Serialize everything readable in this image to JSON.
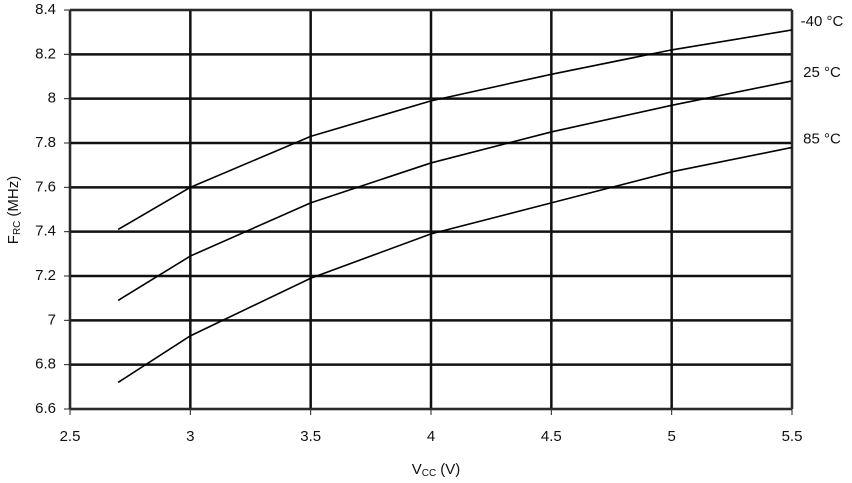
{
  "chart_data": {
    "type": "line",
    "x_label": {
      "main": "V",
      "sub": "CC",
      "unit": "(V)"
    },
    "y_label": {
      "main": "F",
      "sub": "RC",
      "unit": "(MHz)"
    },
    "x": [
      2.7,
      3,
      3.5,
      4,
      4.5,
      5,
      5.5
    ],
    "series": [
      {
        "name": "-40 °C",
        "color": "#000000",
        "values": [
          7.41,
          7.6,
          7.83,
          7.99,
          8.11,
          8.22,
          8.31
        ]
      },
      {
        "name": "25 °C",
        "color": "#000000",
        "values": [
          7.09,
          7.29,
          7.53,
          7.71,
          7.85,
          7.97,
          8.08
        ]
      },
      {
        "name": "85 °C",
        "color": "#000000",
        "values": [
          6.72,
          6.93,
          7.19,
          7.39,
          7.53,
          7.67,
          7.78
        ]
      }
    ],
    "xlim": [
      2.5,
      5.5
    ],
    "xticks": [
      2.5,
      3,
      3.5,
      4,
      4.5,
      5,
      5.5
    ],
    "ylim": [
      6.6,
      8.4
    ],
    "yticks": [
      6.6,
      6.8,
      7,
      7.2,
      7.4,
      7.6,
      7.8,
      8,
      8.2,
      8.4
    ],
    "grid": true
  }
}
